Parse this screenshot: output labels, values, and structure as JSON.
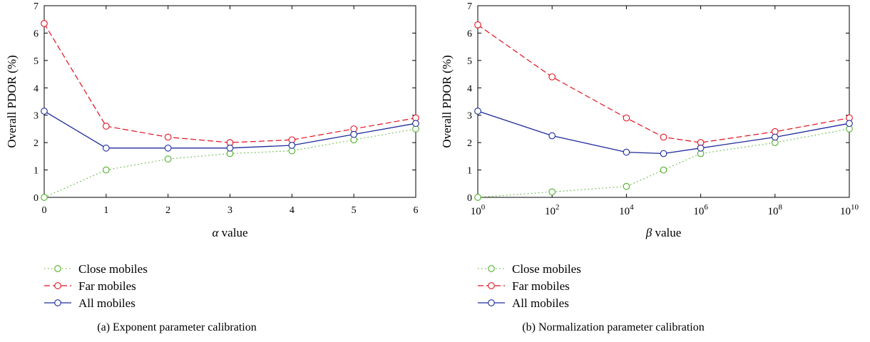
{
  "colors": {
    "close": "#4caf28",
    "far": "#e0101e",
    "all": "#1c2a9a"
  },
  "chart_data": [
    {
      "type": "line",
      "caption": "(a)  Exponent parameter calibration",
      "xlabel_symbol": "α",
      "xlabel_text": " value",
      "ylabel": "Overall PDOR (%)",
      "xscale": "linear",
      "xlim": [
        0,
        6
      ],
      "ylim": [
        0,
        7
      ],
      "xticks": [
        {
          "value": 0,
          "label": "0"
        },
        {
          "value": 1,
          "label": "1"
        },
        {
          "value": 2,
          "label": "2"
        },
        {
          "value": 3,
          "label": "3"
        },
        {
          "value": 4,
          "label": "4"
        },
        {
          "value": 5,
          "label": "5"
        },
        {
          "value": 6,
          "label": "6"
        }
      ],
      "yticks": [
        {
          "value": 0,
          "label": "0"
        },
        {
          "value": 1,
          "label": "1"
        },
        {
          "value": 2,
          "label": "2"
        },
        {
          "value": 3,
          "label": "3"
        },
        {
          "value": 4,
          "label": "4"
        },
        {
          "value": 5,
          "label": "5"
        },
        {
          "value": 6,
          "label": "6"
        },
        {
          "value": 7,
          "label": "7"
        }
      ],
      "legend_position": "below",
      "series": [
        {
          "name": "Close mobiles",
          "style": "close",
          "x": [
            0,
            1,
            2,
            3,
            4,
            5,
            6
          ],
          "y": [
            0.0,
            1.0,
            1.4,
            1.6,
            1.7,
            2.1,
            2.5
          ]
        },
        {
          "name": "Far mobiles",
          "style": "far",
          "x": [
            0,
            1,
            2,
            3,
            4,
            5,
            6
          ],
          "y": [
            6.35,
            2.6,
            2.2,
            2.0,
            2.1,
            2.5,
            2.9
          ]
        },
        {
          "name": "All mobiles",
          "style": "all",
          "x": [
            0,
            1,
            2,
            3,
            4,
            5,
            6
          ],
          "y": [
            3.15,
            1.8,
            1.8,
            1.8,
            1.9,
            2.3,
            2.7
          ]
        }
      ]
    },
    {
      "type": "line",
      "caption": "(b)  Normalization parameter calibration",
      "xlabel_symbol": "β",
      "xlabel_text": " value",
      "ylabel": "Overall PDOR (%)",
      "xscale": "log10",
      "xlim": [
        1,
        10000000000
      ],
      "ylim": [
        0,
        7
      ],
      "xticks": [
        {
          "value": 1,
          "base": "10",
          "exp": "0"
        },
        {
          "value": 100,
          "base": "10",
          "exp": "2"
        },
        {
          "value": 10000,
          "base": "10",
          "exp": "4"
        },
        {
          "value": 1000000,
          "base": "10",
          "exp": "6"
        },
        {
          "value": 100000000,
          "base": "10",
          "exp": "8"
        },
        {
          "value": 10000000000,
          "base": "10",
          "exp": "10"
        }
      ],
      "yticks": [
        {
          "value": 0,
          "label": "0"
        },
        {
          "value": 1,
          "label": "1"
        },
        {
          "value": 2,
          "label": "2"
        },
        {
          "value": 3,
          "label": "3"
        },
        {
          "value": 4,
          "label": "4"
        },
        {
          "value": 5,
          "label": "5"
        },
        {
          "value": 6,
          "label": "6"
        },
        {
          "value": 7,
          "label": "7"
        }
      ],
      "legend_position": "below",
      "series": [
        {
          "name": "Close mobiles",
          "style": "close",
          "x": [
            1,
            100,
            10000,
            100000,
            1000000,
            100000000,
            10000000000
          ],
          "y": [
            0.0,
            0.2,
            0.4,
            1.0,
            1.6,
            2.0,
            2.5
          ]
        },
        {
          "name": "Far mobiles",
          "style": "far",
          "x": [
            1,
            100,
            10000,
            100000,
            1000000,
            100000000,
            10000000000
          ],
          "y": [
            6.3,
            4.4,
            2.9,
            2.2,
            2.0,
            2.4,
            2.9
          ]
        },
        {
          "name": "All mobiles",
          "style": "all",
          "x": [
            1,
            100,
            10000,
            100000,
            1000000,
            100000000,
            10000000000
          ],
          "y": [
            3.15,
            2.25,
            1.65,
            1.6,
            1.8,
            2.2,
            2.7
          ]
        }
      ]
    }
  ]
}
